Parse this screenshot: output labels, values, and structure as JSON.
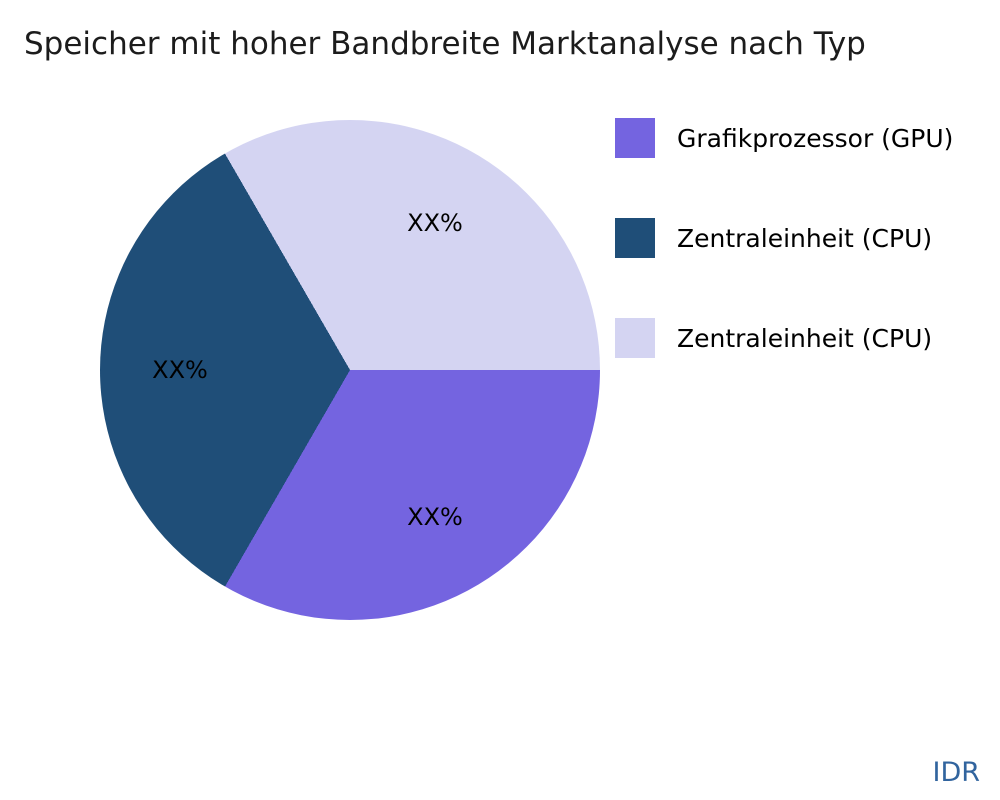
{
  "title": "Speicher mit hoher Bandbreite Marktanalyse nach Typ",
  "watermark": "IDR",
  "chart_data": {
    "type": "pie",
    "title": "Speicher mit hoher Bandbreite Marktanalyse nach Typ",
    "legend_position": "right",
    "start_angle_deg": 90,
    "direction": "clockwise",
    "label_radius_factor": 0.68,
    "slices": [
      {
        "label": "Grafikprozessor (GPU)",
        "value_pct": 33.33,
        "slice_label": "XX%",
        "color": "#7464e0"
      },
      {
        "label": "Zentraleinheit (CPU)",
        "value_pct": 33.33,
        "slice_label": "XX%",
        "color": "#1f4e78"
      },
      {
        "label": "Zentraleinheit (CPU)",
        "value_pct": 33.34,
        "slice_label": "XX%",
        "color": "#d4d4f2"
      }
    ]
  }
}
